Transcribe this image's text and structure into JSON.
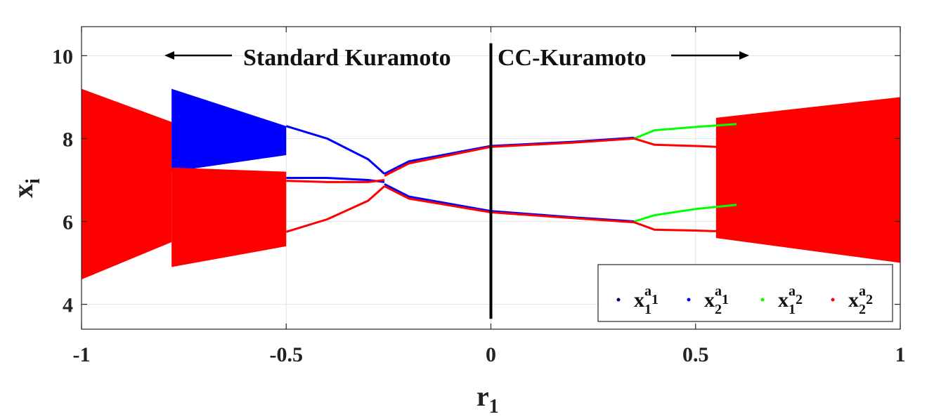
{
  "chart_data": {
    "type": "scatter",
    "title": "",
    "xlabel": "r",
    "xlabel_subscript": "1",
    "ylabel": "x",
    "ylabel_subscript": "i",
    "xlim": [
      -1,
      1
    ],
    "ylim": [
      3.4,
      10.7
    ],
    "xticks": [
      -1,
      -0.5,
      0,
      0.5,
      1
    ],
    "xtick_labels": [
      "-1",
      "-0.5",
      "0",
      "0.5",
      "1"
    ],
    "yticks": [
      4,
      6,
      8,
      10
    ],
    "ytick_labels": [
      "4",
      "6",
      "8",
      "10"
    ],
    "grid": true,
    "divider_x": 0,
    "regions": {
      "left_label": "Standard Kuramoto",
      "right_label": "CC-Kuramoto"
    },
    "legend": {
      "placement": "bottom-right",
      "entries": [
        {
          "base": "x",
          "sub": "1",
          "sup": "a",
          "supsub": "1",
          "color": "#000080"
        },
        {
          "base": "x",
          "sub": "2",
          "sup": "a",
          "supsub": "1",
          "color": "#0000ff"
        },
        {
          "base": "x",
          "sub": "1",
          "sup": "a",
          "supsub": "2",
          "color": "#00ff00"
        },
        {
          "base": "x",
          "sub": "2",
          "sup": "a",
          "supsub": "2",
          "color": "#ff0000"
        }
      ]
    },
    "colors": {
      "x1a1": "#000080",
      "x2a1": "#0000ff",
      "x1a2": "#00ff00",
      "x2a2": "#ff0000",
      "divider": "#000000",
      "grid": "#e3e3e3"
    },
    "branches": [
      {
        "name": "x2a1 upper",
        "color": "#0000ff",
        "points": [
          [
            -0.5,
            8.3
          ],
          [
            -0.4,
            8.0
          ],
          [
            -0.3,
            7.5
          ],
          [
            -0.26,
            7.15
          ]
        ]
      },
      {
        "name": "x2a1 middle",
        "color": "#0000ff",
        "points": [
          [
            -0.5,
            7.05
          ],
          [
            -0.4,
            7.05
          ],
          [
            -0.3,
            7.0
          ],
          [
            -0.26,
            6.95
          ]
        ]
      },
      {
        "name": "x2a2 middle",
        "color": "#ff0000",
        "points": [
          [
            -0.5,
            6.98
          ],
          [
            -0.4,
            6.95
          ],
          [
            -0.3,
            6.95
          ],
          [
            -0.26,
            7.0
          ]
        ]
      },
      {
        "name": "x2a2 lower",
        "color": "#ff0000",
        "points": [
          [
            -0.5,
            5.75
          ],
          [
            -0.4,
            6.05
          ],
          [
            -0.3,
            6.5
          ],
          [
            -0.26,
            6.85
          ]
        ]
      },
      {
        "name": "x2a1 upper-right",
        "color": "#0000ff",
        "points": [
          [
            -0.26,
            7.15
          ],
          [
            -0.2,
            7.45
          ],
          [
            0,
            7.82
          ],
          [
            0.2,
            7.92
          ],
          [
            0.35,
            8.02
          ]
        ]
      },
      {
        "name": "x2a2 upper-right",
        "color": "#ff0000",
        "points": [
          [
            -0.26,
            7.1
          ],
          [
            -0.2,
            7.4
          ],
          [
            0,
            7.8
          ],
          [
            0.2,
            7.9
          ],
          [
            0.35,
            8.0
          ]
        ]
      },
      {
        "name": "x2a1 lower-right",
        "color": "#0000ff",
        "points": [
          [
            -0.26,
            6.9
          ],
          [
            -0.2,
            6.6
          ],
          [
            0,
            6.25
          ],
          [
            0.2,
            6.1
          ],
          [
            0.35,
            6.0
          ]
        ]
      },
      {
        "name": "x2a2 lower-right",
        "color": "#ff0000",
        "points": [
          [
            -0.26,
            6.85
          ],
          [
            -0.2,
            6.55
          ],
          [
            0,
            6.22
          ],
          [
            0.2,
            6.08
          ],
          [
            0.35,
            5.98
          ]
        ]
      },
      {
        "name": "x1a2 upper split top",
        "color": "#00ff00",
        "points": [
          [
            0.35,
            8.0
          ],
          [
            0.4,
            8.2
          ],
          [
            0.5,
            8.28
          ],
          [
            0.6,
            8.35
          ]
        ]
      },
      {
        "name": "x2a2 upper split bottom",
        "color": "#ff0000",
        "points": [
          [
            0.35,
            8.0
          ],
          [
            0.4,
            7.85
          ],
          [
            0.5,
            7.82
          ],
          [
            0.6,
            7.78
          ]
        ]
      },
      {
        "name": "x1a2 lower split top",
        "color": "#00ff00",
        "points": [
          [
            0.35,
            6.0
          ],
          [
            0.4,
            6.15
          ],
          [
            0.5,
            6.3
          ],
          [
            0.6,
            6.4
          ]
        ]
      },
      {
        "name": "x2a2 lower split bottom",
        "color": "#ff0000",
        "points": [
          [
            0.35,
            5.98
          ],
          [
            0.4,
            5.8
          ],
          [
            0.5,
            5.78
          ],
          [
            0.6,
            5.75
          ]
        ]
      }
    ],
    "chaotic_bands": [
      {
        "color": "#ff0000",
        "x": [
          -1,
          -0.78
        ],
        "y_top": [
          9.2,
          8.4
        ],
        "y_bot": [
          4.6,
          5.5
        ]
      },
      {
        "color": "#0000ff",
        "x": [
          -0.78,
          -0.5
        ],
        "y_top": [
          9.2,
          8.3
        ],
        "y_bot": [
          7.2,
          7.6
        ]
      },
      {
        "color": "#ff0000",
        "x": [
          -0.78,
          -0.5
        ],
        "y_top": [
          7.3,
          7.2
        ],
        "y_bot": [
          4.9,
          5.4
        ]
      },
      {
        "color": "#ff0000",
        "x": [
          0.55,
          1.0
        ],
        "y_top": [
          8.5,
          9.0
        ],
        "y_bot": [
          5.6,
          5.0
        ]
      }
    ]
  }
}
